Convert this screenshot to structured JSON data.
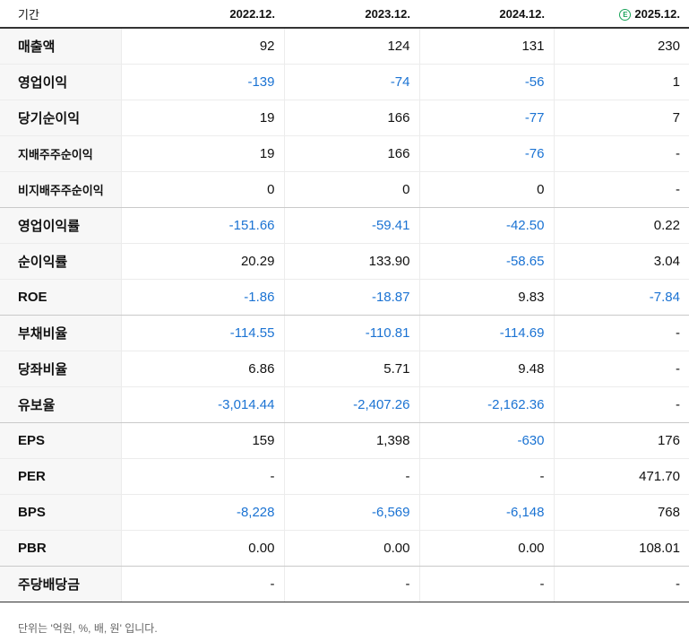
{
  "table": {
    "header": {
      "label": "기간",
      "estimate_badge": "E",
      "periods": [
        "2022.12.",
        "2023.12.",
        "2024.12.",
        "2025.12."
      ]
    },
    "rows": [
      {
        "label": "매출액",
        "values": [
          "92",
          "124",
          "131",
          "230"
        ]
      },
      {
        "label": "영업이익",
        "values": [
          "-139",
          "-74",
          "-56",
          "1"
        ]
      },
      {
        "label": "당기순이익",
        "values": [
          "19",
          "166",
          "-77",
          "7"
        ]
      },
      {
        "label": "지배주주순이익",
        "values": [
          "19",
          "166",
          "-76",
          "-"
        ]
      },
      {
        "label": "비지배주주순이익",
        "values": [
          "0",
          "0",
          "0",
          "-"
        ]
      },
      {
        "label": "영업이익률",
        "values": [
          "-151.66",
          "-59.41",
          "-42.50",
          "0.22"
        ]
      },
      {
        "label": "순이익률",
        "values": [
          "20.29",
          "133.90",
          "-58.65",
          "3.04"
        ]
      },
      {
        "label": "ROE",
        "values": [
          "-1.86",
          "-18.87",
          "9.83",
          "-7.84"
        ]
      },
      {
        "label": "부채비율",
        "values": [
          "-114.55",
          "-110.81",
          "-114.69",
          "-"
        ]
      },
      {
        "label": "당좌비율",
        "values": [
          "6.86",
          "5.71",
          "9.48",
          "-"
        ]
      },
      {
        "label": "유보율",
        "values": [
          "-3,014.44",
          "-2,407.26",
          "-2,162.36",
          "-"
        ]
      },
      {
        "label": "EPS",
        "values": [
          "159",
          "1,398",
          "-630",
          "176"
        ]
      },
      {
        "label": "PER",
        "values": [
          "-",
          "-",
          "-",
          "471.70"
        ]
      },
      {
        "label": "BPS",
        "values": [
          "-8,228",
          "-6,569",
          "-6,148",
          "768"
        ]
      },
      {
        "label": "PBR",
        "values": [
          "0.00",
          "0.00",
          "0.00",
          "108.01"
        ]
      },
      {
        "label": "주당배당금",
        "values": [
          "-",
          "-",
          "-",
          "-"
        ]
      }
    ]
  },
  "footnote": "단위는 '억원, %, 배, 원' 입니다.",
  "colors": {
    "negative": "#1b73d3",
    "estimate_badge": "#1aa35a"
  }
}
